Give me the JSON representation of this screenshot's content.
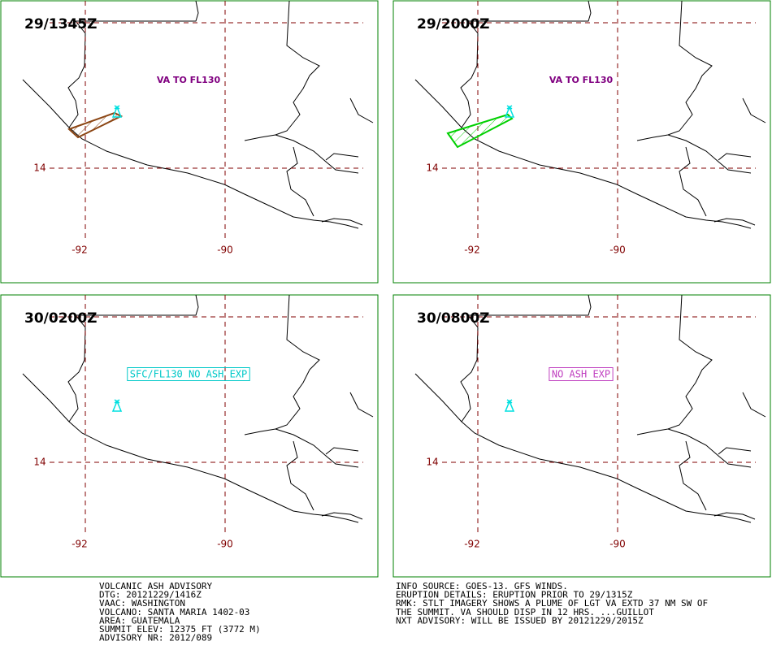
{
  "panels": [
    {
      "time": "29/1345Z",
      "annotation": "VA TO FL130"
    },
    {
      "time": "29/2000Z",
      "annotation": "VA TO FL130"
    },
    {
      "time": "30/0200Z",
      "annotation": "SFC/FL130 NO ASH EXP"
    },
    {
      "time": "30/0800Z",
      "annotation": "NO ASH EXP"
    }
  ],
  "grid_labels": {
    "lat": "14",
    "lon": [
      "-92",
      "-90"
    ]
  },
  "advisory": {
    "left": [
      "VOLCANIC ASH ADVISORY",
      "DTG: 20121229/1416Z",
      "VAAC: WASHINGTON",
      "VOLCANO: SANTA MARIA 1402-03",
      "AREA: GUATEMALA",
      "SUMMIT ELEV: 12375 FT (3772 M)",
      "ADVISORY NR: 2012/089"
    ],
    "right": [
      "INFO SOURCE: GOES-13. GFS WINDS.",
      "ERUPTION DETAILS: ERUPTION PRIOR TO 29/1315Z",
      "RMK: STLT IMAGERY SHOWS A PLUME OF LGT VA EXTD 37 NM SW OF",
      "THE SUMMIT. VA SHOULD DISP IN 12 HRS. ...GUILLOT",
      "NXT ADVISORY: WILL BE ISSUED BY 20121229/2015Z"
    ]
  }
}
